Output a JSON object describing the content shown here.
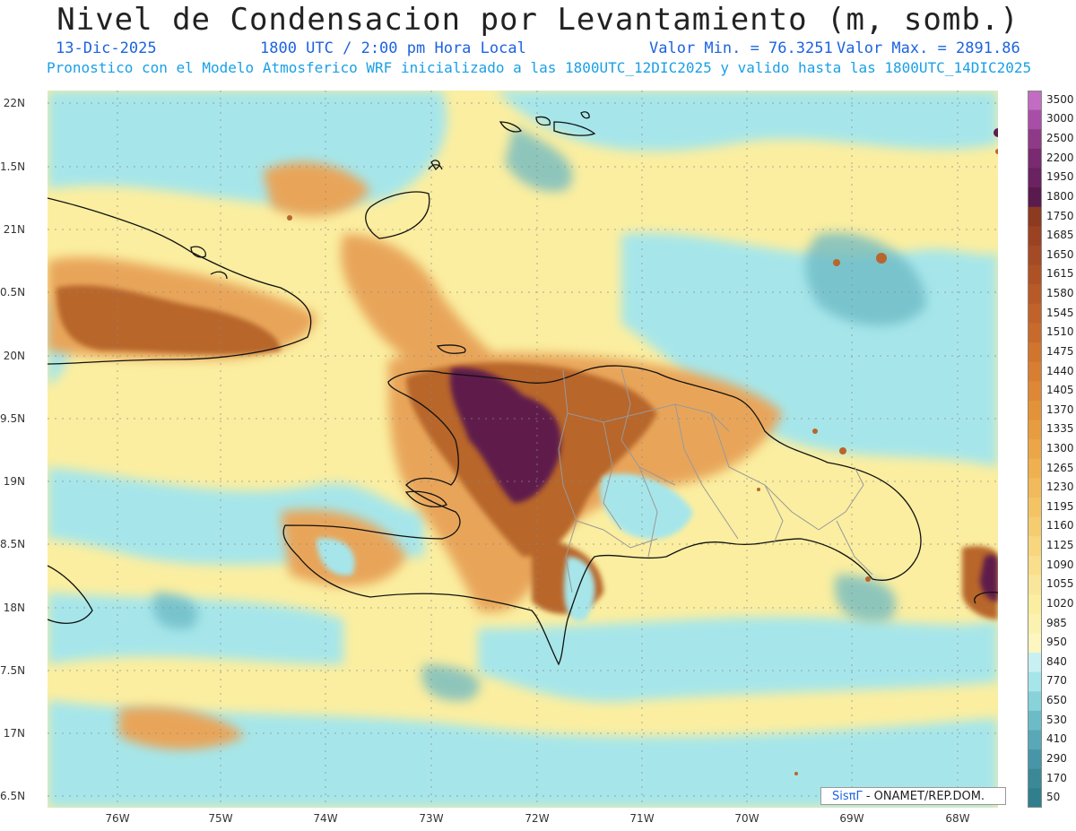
{
  "header": {
    "title": "Nivel de Condensacion por Levantamiento (m, somb.)",
    "date": "13-Dic-2025",
    "time": "1800 UTC / 2:00 pm Hora Local",
    "min_label": "Valor Min. = 76.3251",
    "max_label": "Valor Max. = 2891.86",
    "forecast_note": "Pronostico con el Modelo Atmosferico WRF inicializado a las 1800UTC_12DIC2025 y valido hasta las  1800UTC_14DIC2025"
  },
  "lat_labels": [
    "22N",
    "1.5N",
    "21N",
    "0.5N",
    "20N",
    "9.5N",
    "19N",
    "8.5N",
    "18N",
    "7.5N",
    "17N",
    "6.5N"
  ],
  "lon_labels": [
    "76W",
    "75W",
    "74W",
    "73W",
    "72W",
    "71W",
    "70W",
    "69W",
    "68W"
  ],
  "colorbar": {
    "labels": [
      "3500",
      "3000",
      "2500",
      "2200",
      "1950",
      "1800",
      "1750",
      "1685",
      "1650",
      "1615",
      "1580",
      "1545",
      "1510",
      "1475",
      "1440",
      "1405",
      "1370",
      "1335",
      "1300",
      "1265",
      "1230",
      "1195",
      "1160",
      "1125",
      "1090",
      "1055",
      "1020",
      "985",
      "950",
      "840",
      "770",
      "650",
      "530",
      "410",
      "290",
      "170",
      "50"
    ],
    "colors": {
      "low": "#2f7f8f",
      "water": "#a6e6ea",
      "yellow": "#fbeea0",
      "orange": "#e8a55a",
      "brown": "#b8662c",
      "purple": "#5e1f4c",
      "top": "#c070c0"
    }
  },
  "credit": {
    "brand": "SisπΓ",
    "org": "- ONAMET/REP.DOM."
  },
  "icons": {
    "map": "weather-map",
    "logo": "sispi-logo"
  }
}
